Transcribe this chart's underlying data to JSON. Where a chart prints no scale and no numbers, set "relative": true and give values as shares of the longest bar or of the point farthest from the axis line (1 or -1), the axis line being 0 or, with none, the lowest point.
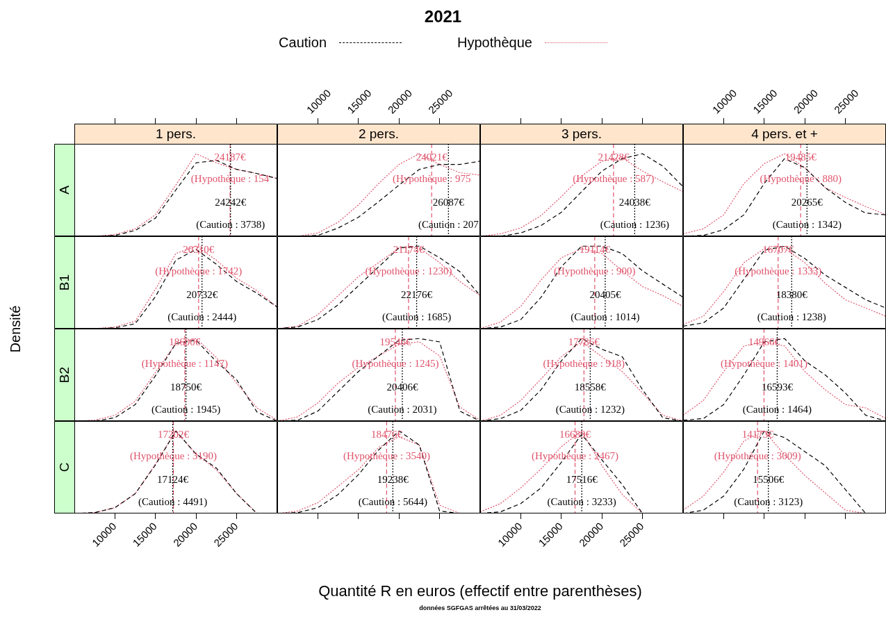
{
  "chart_data": [
    {
      "type": "other",
      "title": "2021",
      "xlabel": "Quantité R en euros (effectif entre parenthèses)",
      "ylabel": "Densité",
      "annotations": [
        "données SGFGAS arrêtées au 31/03/2022"
      ]
    },
    {
      "type": "line",
      "title": "1 pers.",
      "ylabel": "A",
      "relative": true,
      "legend": "top",
      "tick_labels": false,
      "x": [
        5000,
        7500,
        10000,
        12500,
        15000,
        17500,
        20000,
        22500,
        25000,
        27500,
        30000
      ],
      "xlim": [
        5000,
        30000
      ],
      "xticks": [
        10000,
        15000,
        20000,
        25000
      ],
      "series": [
        {
          "name": "Caution",
          "color": "#000000",
          "line_style": "dashed",
          "values": [
            0,
            0,
            0.01,
            0.07,
            0.22,
            0.56,
            0.89,
            0.92,
            0.81,
            0.76,
            0.7
          ]
        },
        {
          "name": "Hypothèque",
          "color": "#df536b",
          "line_style": "dotted",
          "values": [
            0,
            0,
            0.02,
            0.09,
            0.26,
            0.62,
            1,
            0.89,
            0.81,
            0.76,
            0.7
          ]
        }
      ],
      "ref_lines": [
        {
          "axis": "x",
          "value": 24187,
          "label": "24187€",
          "color": "#df536b",
          "line_style": "dashed"
        },
        {
          "axis": "x",
          "value": 24242,
          "label": "24242€",
          "color": "#000000",
          "line_style": "dotted"
        }
      ],
      "annotations": [
        "(Hypothèque : 154",
        "(Caution : 3738)"
      ]
    },
    {
      "type": "line",
      "title": "2 pers.",
      "relative": true,
      "tick_labels": "x",
      "x": [
        5000,
        7500,
        10000,
        12500,
        15000,
        17500,
        20000,
        22500,
        25000,
        27500,
        30000
      ],
      "xlim": [
        5000,
        30000
      ],
      "xticks": [
        10000,
        15000,
        20000,
        25000
      ],
      "series": [
        {
          "color": "#000000",
          "line_style": "dashed",
          "values": [
            0,
            0,
            0.01,
            0.1,
            0.23,
            0.42,
            0.62,
            0.81,
            0.87,
            0.87,
            0.91
          ]
        },
        {
          "color": "#df536b",
          "line_style": "dotted",
          "values": [
            0,
            0,
            0.04,
            0.17,
            0.38,
            0.64,
            0.87,
            1,
            0.87,
            0.77,
            0.74
          ]
        }
      ],
      "ref_lines": [
        {
          "axis": "x",
          "value": 24021,
          "label": "24021€",
          "color": "#df536b",
          "line_style": "dashed"
        },
        {
          "axis": "x",
          "value": 26087,
          "label": "26087€",
          "color": "#000000",
          "line_style": "dotted"
        }
      ],
      "annotations": [
        "(Hypothèque : 975",
        "(Caution : 207"
      ]
    },
    {
      "type": "line",
      "title": "3 pers.",
      "relative": true,
      "tick_labels": false,
      "x": [
        5000,
        7500,
        10000,
        12500,
        15000,
        17500,
        20000,
        22500,
        25000,
        27500,
        30000
      ],
      "xlim": [
        5000,
        30000
      ],
      "xticks": [
        10000,
        15000,
        20000,
        25000
      ],
      "series": [
        {
          "color": "#000000",
          "line_style": "dashed",
          "values": [
            0,
            0,
            0.04,
            0.13,
            0.29,
            0.54,
            0.79,
            0.94,
            1,
            0.85,
            0.6
          ]
        },
        {
          "color": "#df536b",
          "line_style": "dotted",
          "values": [
            0,
            0.03,
            0.1,
            0.25,
            0.48,
            0.73,
            0.91,
            0.95,
            0.79,
            0.66,
            0.54
          ]
        }
      ],
      "ref_lines": [
        {
          "axis": "x",
          "value": 21428,
          "label": "21428€",
          "color": "#df536b",
          "line_style": "dashed"
        },
        {
          "axis": "x",
          "value": 24038,
          "label": "24038€",
          "color": "#000000",
          "line_style": "dotted"
        }
      ],
      "annotations": [
        "(Hypothèque : 587)",
        "(Caution : 1236)"
      ]
    },
    {
      "type": "line",
      "title": "4 pers. et +",
      "relative": true,
      "tick_labels": "x",
      "x": [
        5000,
        7500,
        10000,
        12500,
        15000,
        17500,
        20000,
        22500,
        25000,
        27500,
        30000
      ],
      "xlim": [
        5000,
        30000
      ],
      "xticks": [
        10000,
        15000,
        20000,
        25000
      ],
      "series": [
        {
          "color": "#000000",
          "line_style": "dashed",
          "values": [
            0,
            0.01,
            0.08,
            0.26,
            0.64,
            0.94,
            0.83,
            0.59,
            0.41,
            0.28,
            0.26
          ]
        },
        {
          "color": "#df536b",
          "line_style": "dotted",
          "values": [
            0.03,
            0.09,
            0.26,
            0.64,
            0.88,
            1,
            0.83,
            0.59,
            0.47,
            0.36,
            0.26
          ]
        }
      ],
      "ref_lines": [
        {
          "axis": "x",
          "value": 19485,
          "label": "19485€",
          "color": "#df536b",
          "line_style": "dashed"
        },
        {
          "axis": "x",
          "value": 20265,
          "label": "20265€",
          "color": "#000000",
          "line_style": "dotted"
        }
      ],
      "annotations": [
        "(Hypothèque : 880)",
        "(Caution : 1342)"
      ]
    },
    {
      "type": "line",
      "ylabel": "B1",
      "relative": true,
      "tick_labels": false,
      "x": [
        5000,
        7500,
        10000,
        12500,
        15000,
        17500,
        20000,
        22500,
        25000,
        27500,
        30000
      ],
      "xlim": [
        5000,
        30000
      ],
      "series": [
        {
          "color": "#000000",
          "line_style": "dashed",
          "values": [
            0,
            0,
            0.01,
            0.06,
            0.39,
            0.83,
            0.96,
            0.78,
            0.57,
            0.43,
            0.26
          ]
        },
        {
          "color": "#df536b",
          "line_style": "dotted",
          "values": [
            0,
            0,
            0.02,
            0.09,
            0.48,
            0.91,
            1,
            0.83,
            0.61,
            0.46,
            0.26
          ]
        }
      ],
      "ref_lines": [
        {
          "axis": "x",
          "value": 20310,
          "label": "20310€",
          "color": "#df536b",
          "line_style": "dashed"
        },
        {
          "axis": "x",
          "value": 20732,
          "label": "20732€",
          "color": "#000000",
          "line_style": "dotted"
        }
      ],
      "annotations": [
        "(Hypothèque : 1742)",
        "(Caution : 2444)"
      ]
    },
    {
      "type": "line",
      "relative": true,
      "tick_labels": false,
      "x": [
        5000,
        7500,
        10000,
        12500,
        15000,
        17500,
        20000,
        22500,
        25000,
        27500,
        30000
      ],
      "xlim": [
        5000,
        30000
      ],
      "series": [
        {
          "color": "#000000",
          "line_style": "dashed",
          "values": [
            0,
            0.02,
            0.11,
            0.29,
            0.52,
            0.75,
            0.98,
            1,
            0.86,
            0.69,
            0.4
          ]
        },
        {
          "color": "#df536b",
          "line_style": "dotted",
          "values": [
            0,
            0.03,
            0.17,
            0.4,
            0.63,
            0.8,
            0.98,
            0.98,
            0.8,
            0.57,
            0.4
          ]
        }
      ],
      "ref_lines": [
        {
          "axis": "x",
          "value": 21174,
          "label": "21174€",
          "color": "#df536b",
          "line_style": "dashed"
        },
        {
          "axis": "x",
          "value": 22176,
          "label": "22176€",
          "color": "#000000",
          "line_style": "dotted"
        }
      ],
      "annotations": [
        "(Hypothèque : 1230)",
        "(Caution : 1685)"
      ]
    },
    {
      "type": "line",
      "relative": true,
      "tick_labels": false,
      "x": [
        5000,
        7500,
        10000,
        12500,
        15000,
        17500,
        20000,
        22500,
        25000,
        27500,
        30000
      ],
      "xlim": [
        5000,
        30000
      ],
      "series": [
        {
          "color": "#000000",
          "line_style": "dashed",
          "values": [
            0,
            0.02,
            0.11,
            0.38,
            0.75,
            1,
            1,
            0.91,
            0.7,
            0.54,
            0.38
          ]
        },
        {
          "color": "#df536b",
          "line_style": "dotted",
          "values": [
            0,
            0.08,
            0.27,
            0.59,
            0.86,
            0.97,
            0.91,
            0.7,
            0.51,
            0.4,
            0.27
          ]
        }
      ],
      "ref_lines": [
        {
          "axis": "x",
          "value": 19114,
          "label": "19114€",
          "color": "#df536b",
          "line_style": "dashed"
        },
        {
          "axis": "x",
          "value": 20405,
          "label": "20405€",
          "color": "#000000",
          "line_style": "dotted"
        }
      ],
      "annotations": [
        "(Hypothèque : 900)",
        "(Caution : 1014)"
      ]
    },
    {
      "type": "line",
      "relative": true,
      "tick_labels": false,
      "x": [
        5000,
        7500,
        10000,
        12500,
        15000,
        17500,
        20000,
        22500,
        25000,
        27500,
        30000
      ],
      "xlim": [
        5000,
        30000
      ],
      "series": [
        {
          "color": "#000000",
          "line_style": "dashed",
          "values": [
            0.03,
            0.07,
            0.25,
            0.6,
            0.95,
            1,
            0.85,
            0.65,
            0.5,
            0.35,
            0.25
          ]
        },
        {
          "color": "#df536b",
          "line_style": "dotted",
          "values": [
            0.05,
            0.15,
            0.45,
            0.8,
            0.97,
            0.97,
            0.8,
            0.55,
            0.35,
            0.25,
            0.15
          ]
        }
      ],
      "ref_lines": [
        {
          "axis": "x",
          "value": 16707,
          "label": "16707€",
          "color": "#df536b",
          "line_style": "dashed"
        },
        {
          "axis": "x",
          "value": 18380,
          "label": "18380€",
          "color": "#000000",
          "line_style": "dotted"
        }
      ],
      "annotations": [
        "(Hypothèque : 1333)",
        "(Caution : 1238)"
      ]
    },
    {
      "type": "line",
      "ylabel": "B2",
      "relative": true,
      "tick_labels": false,
      "x": [
        5000,
        7500,
        10000,
        12500,
        15000,
        17500,
        20000,
        22500,
        25000,
        27500,
        30000
      ],
      "xlim": [
        5000,
        30000
      ],
      "series": [
        {
          "color": "#000000",
          "line_style": "dashed",
          "values": [
            0,
            0,
            0.04,
            0.2,
            0.55,
            0.94,
            0.98,
            0.72,
            0.5,
            0.11,
            0
          ]
        },
        {
          "color": "#df536b",
          "line_style": "dotted",
          "values": [
            0,
            0.01,
            0.07,
            0.24,
            0.59,
            0.94,
            1,
            0.77,
            0.46,
            0.16,
            0.01
          ]
        }
      ],
      "ref_lines": [
        {
          "axis": "x",
          "value": 18600,
          "label": "18600€",
          "color": "#df536b",
          "line_style": "dashed"
        },
        {
          "axis": "x",
          "value": 18750,
          "label": "18750€",
          "color": "#000000",
          "line_style": "dotted"
        }
      ],
      "annotations": [
        "(Hypothèque : 1147)",
        "(Caution : 1945)"
      ]
    },
    {
      "type": "line",
      "relative": true,
      "tick_labels": false,
      "x": [
        5000,
        7500,
        10000,
        12500,
        15000,
        17500,
        20000,
        22500,
        25000,
        27500,
        30000
      ],
      "xlim": [
        5000,
        30000
      ],
      "series": [
        {
          "color": "#000000",
          "line_style": "dashed",
          "values": [
            0,
            0.01,
            0.12,
            0.36,
            0.6,
            0.79,
            0.98,
            1,
            0.96,
            0.12,
            0
          ]
        },
        {
          "color": "#df536b",
          "line_style": "dotted",
          "values": [
            0,
            0.05,
            0.22,
            0.46,
            0.65,
            0.79,
            0.93,
            0.96,
            0.79,
            0.17,
            0.01
          ]
        }
      ],
      "ref_lines": [
        {
          "axis": "x",
          "value": 19546,
          "label": "19546€",
          "color": "#df536b",
          "line_style": "dashed"
        },
        {
          "axis": "x",
          "value": 20406,
          "label": "20406€",
          "color": "#000000",
          "line_style": "dotted"
        }
      ],
      "annotations": [
        "(Hypothèque : 1245)",
        "(Caution : 2031)"
      ]
    },
    {
      "type": "line",
      "relative": true,
      "tick_labels": false,
      "x": [
        5000,
        7500,
        10000,
        12500,
        15000,
        17500,
        20000,
        22500,
        25000,
        27500,
        30000
      ],
      "xlim": [
        5000,
        30000
      ],
      "series": [
        {
          "color": "#000000",
          "line_style": "dashed",
          "values": [
            0,
            0.03,
            0.13,
            0.38,
            0.73,
            1,
            0.87,
            0.78,
            0.38,
            0.04,
            0
          ]
        },
        {
          "color": "#df536b",
          "line_style": "dotted",
          "values": [
            0,
            0.07,
            0.25,
            0.51,
            0.78,
            0.96,
            0.78,
            0.6,
            0.34,
            0.07,
            0
          ]
        }
      ],
      "ref_lines": [
        {
          "axis": "x",
          "value": 17786,
          "label": "17786€",
          "color": "#df536b",
          "line_style": "dashed"
        },
        {
          "axis": "x",
          "value": 18558,
          "label": "18558€",
          "color": "#000000",
          "line_style": "dotted"
        }
      ],
      "annotations": [
        "(Hypothèque : 918)",
        "(Caution : 1232)"
      ]
    },
    {
      "type": "line",
      "relative": true,
      "tick_labels": false,
      "x": [
        5000,
        7500,
        10000,
        12500,
        15000,
        17500,
        20000,
        22500,
        25000,
        27500,
        30000
      ],
      "xlim": [
        5000,
        30000
      ],
      "series": [
        {
          "color": "#000000",
          "line_style": "dashed",
          "values": [
            0.01,
            0.03,
            0.2,
            0.56,
            0.96,
            1,
            0.73,
            0.56,
            0.34,
            0.07,
            0
          ]
        },
        {
          "color": "#df536b",
          "line_style": "dotted",
          "values": [
            0.07,
            0.25,
            0.6,
            0.91,
            0.96,
            0.91,
            0.6,
            0.38,
            0.2,
            0.16,
            0.03
          ]
        }
      ],
      "ref_lines": [
        {
          "axis": "x",
          "value": 14966,
          "label": "14966€",
          "color": "#df536b",
          "line_style": "dashed"
        },
        {
          "axis": "x",
          "value": 16593,
          "label": "16593€",
          "color": "#000000",
          "line_style": "dotted"
        }
      ],
      "annotations": [
        "(Hypothèque : 1401)",
        "(Caution : 1464)"
      ]
    },
    {
      "type": "line",
      "ylabel": "C",
      "relative": true,
      "tick_labels": "x",
      "x": [
        5000,
        7500,
        10000,
        12500,
        15000,
        17500,
        20000,
        22500,
        25000,
        27500,
        30000
      ],
      "xlim": [
        5000,
        30000
      ],
      "xticks": [
        10000,
        15000,
        20000,
        25000
      ],
      "series": [
        {
          "color": "#000000",
          "line_style": "dashed",
          "values": [
            0,
            0.01,
            0.07,
            0.24,
            0.59,
            1,
            0.72,
            0.55,
            0.24,
            0,
            0
          ]
        },
        {
          "color": "#df536b",
          "line_style": "dotted",
          "values": [
            0,
            0.01,
            0.07,
            0.24,
            0.6,
            1,
            0.72,
            0.53,
            0.24,
            0,
            0
          ]
        }
      ],
      "ref_lines": [
        {
          "axis": "x",
          "value": 17202,
          "label": "17202€",
          "color": "#df536b",
          "line_style": "dashed"
        },
        {
          "axis": "x",
          "value": 17124,
          "label": "17124€",
          "color": "#000000",
          "line_style": "dotted"
        }
      ],
      "annotations": [
        "(Hypothèque : 3190)",
        "(Caution : 4491)"
      ]
    },
    {
      "type": "line",
      "relative": true,
      "tick_labels": false,
      "x": [
        5000,
        7500,
        10000,
        12500,
        15000,
        17500,
        20000,
        22500,
        25000,
        27500,
        30000
      ],
      "xlim": [
        5000,
        30000
      ],
      "xticks": [
        10000,
        15000,
        20000,
        25000
      ],
      "series": [
        {
          "color": "#000000",
          "line_style": "dashed",
          "values": [
            0,
            0.01,
            0.07,
            0.23,
            0.47,
            0.77,
            1,
            0.83,
            0.03,
            0,
            0
          ]
        },
        {
          "color": "#df536b",
          "line_style": "dotted",
          "values": [
            0,
            0.03,
            0.13,
            0.33,
            0.53,
            0.8,
            0.93,
            0.83,
            0.1,
            0,
            0
          ]
        }
      ],
      "ref_lines": [
        {
          "axis": "x",
          "value": 18476,
          "label": "18476€",
          "color": "#df536b",
          "line_style": "dashed"
        },
        {
          "axis": "x",
          "value": 19238,
          "label": "19238€",
          "color": "#000000",
          "line_style": "dotted"
        }
      ],
      "annotations": [
        "(Hypothèque : 3540)",
        "(Caution : 5644)"
      ]
    },
    {
      "type": "line",
      "relative": true,
      "tick_labels": "x",
      "x": [
        5000,
        7500,
        10000,
        12500,
        15000,
        17500,
        20000,
        22500,
        25000,
        27500,
        30000
      ],
      "xlim": [
        5000,
        30000
      ],
      "xticks": [
        10000,
        15000,
        20000,
        25000
      ],
      "series": [
        {
          "color": "#000000",
          "line_style": "dashed",
          "values": [
            0,
            0.02,
            0.12,
            0.31,
            0.62,
            0.96,
            0.65,
            0.35,
            0,
            0,
            0
          ]
        },
        {
          "color": "#df536b",
          "line_style": "dotted",
          "values": [
            0.02,
            0.12,
            0.31,
            0.54,
            0.81,
            1,
            0.58,
            0.23,
            0,
            0,
            0
          ]
        }
      ],
      "ref_lines": [
        {
          "axis": "x",
          "value": 16689,
          "label": "16689€",
          "color": "#df536b",
          "line_style": "dashed"
        },
        {
          "axis": "x",
          "value": 17516,
          "label": "17516€",
          "color": "#000000",
          "line_style": "dotted"
        }
      ],
      "annotations": [
        "(Hypothèque : 2467)",
        "(Caution : 3233)"
      ]
    },
    {
      "type": "line",
      "relative": true,
      "tick_labels": false,
      "x": [
        5000,
        7500,
        10000,
        12500,
        15000,
        17500,
        20000,
        22500,
        25000,
        27500,
        30000
      ],
      "xlim": [
        5000,
        30000
      ],
      "xticks": [
        10000,
        15000,
        20000,
        25000
      ],
      "series": [
        {
          "color": "#000000",
          "line_style": "dashed",
          "values": [
            0,
            0.04,
            0.21,
            0.54,
            1,
            0.92,
            0.75,
            0.58,
            0.29,
            0,
            0
          ]
        },
        {
          "color": "#df536b",
          "line_style": "dotted",
          "values": [
            0.04,
            0.21,
            0.5,
            0.88,
            1,
            0.71,
            0.46,
            0.25,
            0.04,
            0,
            0
          ]
        }
      ],
      "ref_lines": [
        {
          "axis": "x",
          "value": 14173,
          "label": "14173€",
          "color": "#df536b",
          "line_style": "dashed"
        },
        {
          "axis": "x",
          "value": 15506,
          "label": "15506€",
          "color": "#000000",
          "line_style": "dotted"
        }
      ],
      "annotations": [
        "(Hypothèque : 3009)",
        "(Caution : 3123)"
      ]
    }
  ]
}
